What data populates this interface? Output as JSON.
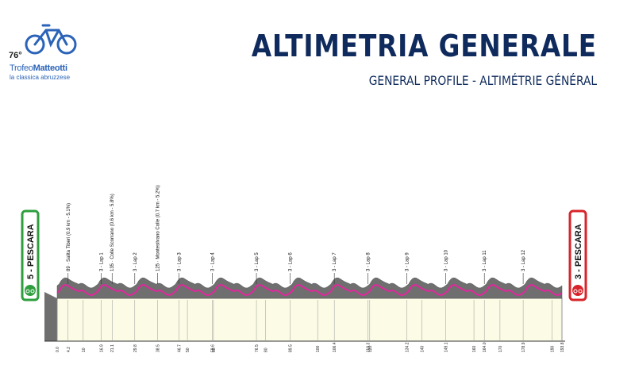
{
  "logo": {
    "edition": "76°",
    "name_regular": "Trofeo",
    "name_bold": "Matteotti",
    "tagline": "la classica abruzzese"
  },
  "header": {
    "title": "ALTIMETRIA GENERALE",
    "subtitle": "GENERAL PROFILE - ALTIMÉTRIE GÉNÉRAL"
  },
  "start": {
    "label": "5 - PESCARA",
    "color": "#2e9e3e"
  },
  "finish": {
    "label": "3 - PESCARA",
    "color": "#d8232a"
  },
  "climbs": [
    {
      "label": "89 · Salita Tiberi (0.9 km - 5.1%)",
      "km": 4.2
    },
    {
      "label": "135 · Colle Scorrano (0.6 km - 5.8%)",
      "km": 21.1
    },
    {
      "label": "125 · Montesilvano Colle (0.7 km - 5.2%)",
      "km": 38.5
    }
  ],
  "laps": [
    {
      "label": "3 - Lap 1",
      "km": 16.9
    },
    {
      "label": "3 - Lap 2",
      "km": 29.8
    },
    {
      "label": "3 - Lap 3",
      "km": 46.7
    },
    {
      "label": "3 - Lap 4",
      "km": 59.6
    },
    {
      "label": "3 - Lap 5",
      "km": 76.5
    },
    {
      "label": "3 - Lap 6",
      "km": 89.5
    },
    {
      "label": "3 - Lap 7",
      "km": 106.4
    },
    {
      "label": "3 - Lap 8",
      "km": 119.3
    },
    {
      "label": "3 - Lap 9",
      "km": 134.2
    },
    {
      "label": "3 - Lap 10",
      "km": 149.1
    },
    {
      "label": "3 - Lap 11",
      "km": 164.0
    },
    {
      "label": "3 - Lap 12",
      "km": 178.9
    }
  ],
  "km_ticks": [
    {
      "label": "0.0",
      "km": 0
    },
    {
      "label": "4.2",
      "km": 4.2
    },
    {
      "label": "10",
      "km": 10
    },
    {
      "label": "16.9",
      "km": 16.9
    },
    {
      "label": "21.1",
      "km": 21.1
    },
    {
      "label": "29.8",
      "km": 29.8
    },
    {
      "label": "38.5",
      "km": 38.5
    },
    {
      "label": "46.7",
      "km": 46.7
    },
    {
      "label": "50",
      "km": 50
    },
    {
      "label": "59.6",
      "km": 59.6
    },
    {
      "label": "60",
      "km": 60
    },
    {
      "label": "76.5",
      "km": 76.5
    },
    {
      "label": "80",
      "km": 80
    },
    {
      "label": "89.5",
      "km": 89.5
    },
    {
      "label": "100",
      "km": 100
    },
    {
      "label": "106.4",
      "km": 106.4
    },
    {
      "label": "119.3",
      "km": 119.3
    },
    {
      "label": "120",
      "km": 120
    },
    {
      "label": "134.2",
      "km": 134.2
    },
    {
      "label": "140",
      "km": 140
    },
    {
      "label": "149.1",
      "km": 149.1
    },
    {
      "label": "160",
      "km": 160
    },
    {
      "label": "164.0",
      "km": 164.0
    },
    {
      "label": "170",
      "km": 170
    },
    {
      "label": "178.9",
      "km": 178.9
    },
    {
      "label": "190",
      "km": 190
    },
    {
      "label": "193.8",
      "km": 193.8
    }
  ],
  "total_km": 193.8,
  "colors": {
    "terrain": "#6f6f6f",
    "fill": "#fbfbe6",
    "route": "#e0289c",
    "title": "#0f2a5c"
  }
}
